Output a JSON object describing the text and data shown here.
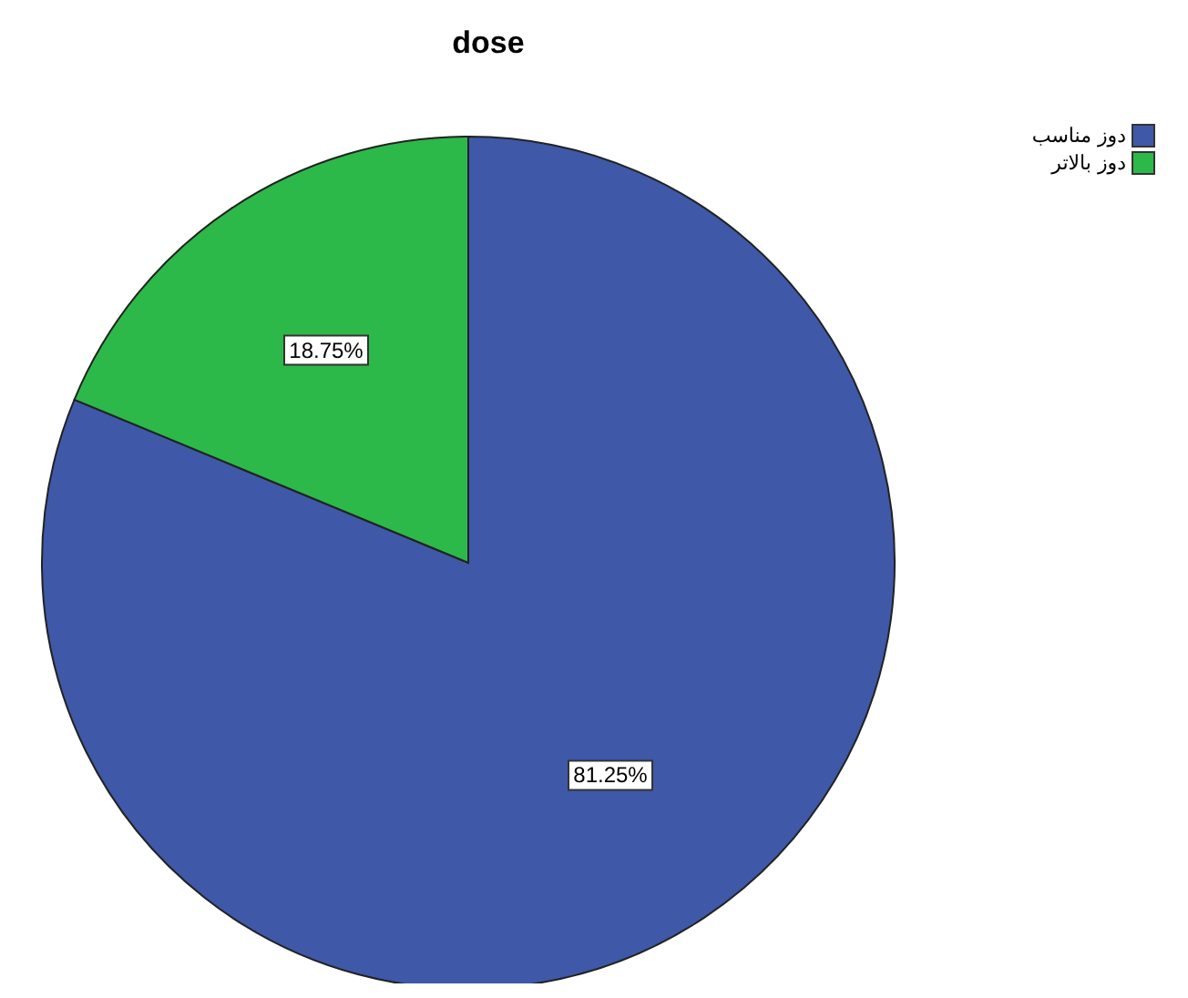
{
  "chart_data": {
    "type": "pie",
    "title": "dose",
    "categories": [
      "دوز مناسب",
      "دوز بالاتر"
    ],
    "values": [
      81.25,
      18.75
    ],
    "colors": [
      "#3f58a8",
      "#2db84a"
    ],
    "value_labels": [
      "81.25%",
      "18.75%"
    ],
    "legend": "top right"
  }
}
